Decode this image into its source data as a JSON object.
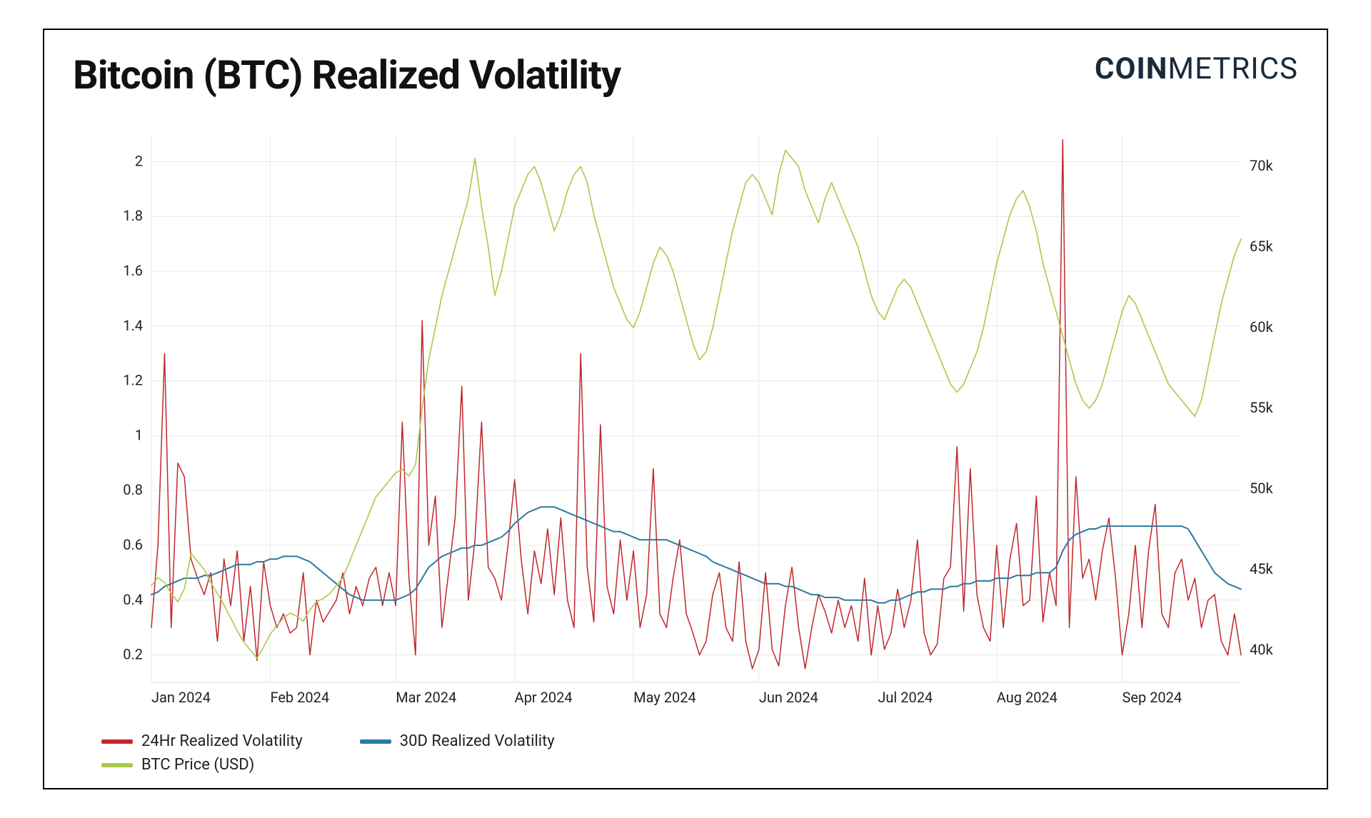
{
  "title": "Bitcoin (BTC) Realized Volatility",
  "brand_bold": "COIN",
  "brand_light": "METRICS",
  "chart": {
    "type": "line",
    "background_color": "#ffffff",
    "border_color": "#000000",
    "grid_color": "#e8e8e8",
    "title_fontsize": 56,
    "axis_fontsize": 20,
    "line_width_vol": 1.5,
    "line_width_30d": 2.0,
    "line_width_price": 1.6,
    "x_labels": [
      "Jan 2024",
      "Feb 2024",
      "Mar 2024",
      "Apr 2024",
      "May 2024",
      "Jun 2024",
      "Jul 2024",
      "Aug 2024",
      "Sep 2024"
    ],
    "y_left": {
      "min": 0.1,
      "max": 2.1,
      "ticks": [
        0.2,
        0.4,
        0.6,
        0.8,
        1,
        1.2,
        1.4,
        1.6,
        1.8,
        2
      ],
      "label": ""
    },
    "y_right": {
      "min": 38000,
      "max": 72000,
      "ticks": [
        40000,
        45000,
        50000,
        55000,
        60000,
        65000,
        70000
      ],
      "tick_labels": [
        "40k",
        "45k",
        "50k",
        "55k",
        "60k",
        "65k",
        "70k"
      ],
      "label": ""
    },
    "series": [
      {
        "name": "24Hr Realized Volatility",
        "color": "#c0272d",
        "axis": "left",
        "values": [
          0.3,
          0.6,
          1.3,
          0.3,
          0.9,
          0.85,
          0.55,
          0.48,
          0.42,
          0.5,
          0.25,
          0.55,
          0.38,
          0.58,
          0.25,
          0.45,
          0.18,
          0.54,
          0.38,
          0.3,
          0.35,
          0.28,
          0.3,
          0.5,
          0.2,
          0.4,
          0.32,
          0.36,
          0.4,
          0.5,
          0.35,
          0.45,
          0.38,
          0.48,
          0.52,
          0.38,
          0.5,
          0.38,
          1.05,
          0.48,
          0.2,
          1.42,
          0.6,
          0.78,
          0.3,
          0.5,
          0.7,
          1.18,
          0.4,
          0.62,
          1.05,
          0.52,
          0.48,
          0.4,
          0.6,
          0.84,
          0.55,
          0.35,
          0.58,
          0.46,
          0.66,
          0.42,
          0.7,
          0.4,
          0.3,
          1.3,
          0.52,
          0.32,
          1.04,
          0.45,
          0.35,
          0.62,
          0.4,
          0.58,
          0.3,
          0.42,
          0.88,
          0.35,
          0.3,
          0.48,
          0.62,
          0.35,
          0.28,
          0.2,
          0.25,
          0.42,
          0.5,
          0.3,
          0.25,
          0.54,
          0.25,
          0.15,
          0.22,
          0.5,
          0.22,
          0.16,
          0.38,
          0.52,
          0.3,
          0.15,
          0.3,
          0.42,
          0.36,
          0.28,
          0.4,
          0.3,
          0.38,
          0.25,
          0.48,
          0.2,
          0.38,
          0.22,
          0.28,
          0.44,
          0.3,
          0.4,
          0.62,
          0.28,
          0.2,
          0.24,
          0.48,
          0.52,
          0.96,
          0.36,
          0.88,
          0.42,
          0.3,
          0.25,
          0.6,
          0.3,
          0.55,
          0.68,
          0.38,
          0.4,
          0.78,
          0.32,
          0.5,
          0.38,
          2.08,
          0.3,
          0.85,
          0.48,
          0.55,
          0.4,
          0.58,
          0.7,
          0.48,
          0.2,
          0.35,
          0.6,
          0.3,
          0.58,
          0.75,
          0.35,
          0.3,
          0.5,
          0.55,
          0.4,
          0.48,
          0.3,
          0.4,
          0.42,
          0.25,
          0.2,
          0.35,
          0.2
        ]
      },
      {
        "name": "30D Realized Volatility",
        "color": "#2b7aa1",
        "axis": "left",
        "values": [
          0.42,
          0.43,
          0.45,
          0.46,
          0.47,
          0.48,
          0.48,
          0.48,
          0.49,
          0.49,
          0.5,
          0.51,
          0.52,
          0.53,
          0.53,
          0.53,
          0.54,
          0.54,
          0.55,
          0.55,
          0.56,
          0.56,
          0.56,
          0.55,
          0.54,
          0.52,
          0.5,
          0.48,
          0.46,
          0.44,
          0.42,
          0.41,
          0.4,
          0.4,
          0.4,
          0.4,
          0.4,
          0.4,
          0.41,
          0.42,
          0.44,
          0.48,
          0.52,
          0.54,
          0.56,
          0.57,
          0.58,
          0.59,
          0.59,
          0.6,
          0.6,
          0.61,
          0.62,
          0.63,
          0.65,
          0.68,
          0.7,
          0.72,
          0.73,
          0.74,
          0.74,
          0.74,
          0.73,
          0.72,
          0.71,
          0.7,
          0.69,
          0.68,
          0.67,
          0.66,
          0.65,
          0.65,
          0.64,
          0.63,
          0.62,
          0.62,
          0.62,
          0.62,
          0.62,
          0.61,
          0.6,
          0.59,
          0.58,
          0.57,
          0.56,
          0.54,
          0.53,
          0.52,
          0.51,
          0.5,
          0.49,
          0.48,
          0.47,
          0.46,
          0.46,
          0.46,
          0.45,
          0.45,
          0.44,
          0.43,
          0.42,
          0.42,
          0.41,
          0.41,
          0.41,
          0.4,
          0.4,
          0.4,
          0.4,
          0.4,
          0.39,
          0.39,
          0.4,
          0.4,
          0.41,
          0.42,
          0.43,
          0.43,
          0.44,
          0.44,
          0.44,
          0.45,
          0.45,
          0.46,
          0.46,
          0.47,
          0.47,
          0.47,
          0.48,
          0.48,
          0.48,
          0.49,
          0.49,
          0.49,
          0.5,
          0.5,
          0.5,
          0.52,
          0.58,
          0.62,
          0.64,
          0.65,
          0.66,
          0.66,
          0.67,
          0.67,
          0.67,
          0.67,
          0.67,
          0.67,
          0.67,
          0.67,
          0.67,
          0.67,
          0.67,
          0.67,
          0.67,
          0.66,
          0.62,
          0.58,
          0.54,
          0.5,
          0.48,
          0.46,
          0.45,
          0.44
        ]
      },
      {
        "name": "BTC Price (USD)",
        "color": "#a9c94a",
        "axis": "right",
        "values": [
          44000,
          44500,
          44200,
          43500,
          43000,
          43800,
          46000,
          45500,
          45000,
          44200,
          43500,
          42800,
          42000,
          41200,
          40500,
          40000,
          39500,
          40200,
          41000,
          41500,
          42000,
          42300,
          42100,
          41800,
          42500,
          43000,
          43200,
          43500,
          44000,
          44500,
          45500,
          46500,
          47500,
          48500,
          49500,
          50000,
          50500,
          51000,
          51200,
          50800,
          51500,
          55000,
          58000,
          60000,
          62000,
          63500,
          65000,
          66500,
          68000,
          70500,
          67500,
          65000,
          62000,
          63500,
          65500,
          67500,
          68500,
          69500,
          70000,
          69000,
          67500,
          66000,
          67000,
          68500,
          69500,
          70000,
          69000,
          67000,
          65500,
          64000,
          62500,
          61500,
          60500,
          60000,
          61000,
          62500,
          64000,
          65000,
          64500,
          63500,
          62000,
          60500,
          59000,
          58000,
          58500,
          60000,
          62000,
          64000,
          66000,
          67500,
          69000,
          69500,
          69000,
          68000,
          67000,
          69500,
          71000,
          70500,
          70000,
          68500,
          67500,
          66500,
          68000,
          69000,
          68000,
          67000,
          66000,
          65000,
          63500,
          62000,
          61000,
          60500,
          61500,
          62500,
          63000,
          62500,
          61500,
          60500,
          59500,
          58500,
          57500,
          56500,
          56000,
          56500,
          57500,
          58500,
          60000,
          62000,
          64000,
          65500,
          67000,
          68000,
          68500,
          67500,
          66000,
          64000,
          62500,
          61000,
          59500,
          58000,
          56500,
          55500,
          55000,
          55500,
          56500,
          58000,
          59500,
          61000,
          62000,
          61500,
          60500,
          59500,
          58500,
          57500,
          56500,
          56000,
          55500,
          55000,
          54500,
          55500,
          57500,
          59500,
          61500,
          63000,
          64500,
          65500
        ]
      }
    ]
  },
  "legend": {
    "col1": [
      {
        "label": "24Hr Realized Volatility",
        "color": "#c0272d"
      },
      {
        "label": "BTC Price (USD)",
        "color": "#a9c94a"
      }
    ],
    "col2": [
      {
        "label": "30D Realized Volatility",
        "color": "#2b7aa1"
      }
    ]
  }
}
